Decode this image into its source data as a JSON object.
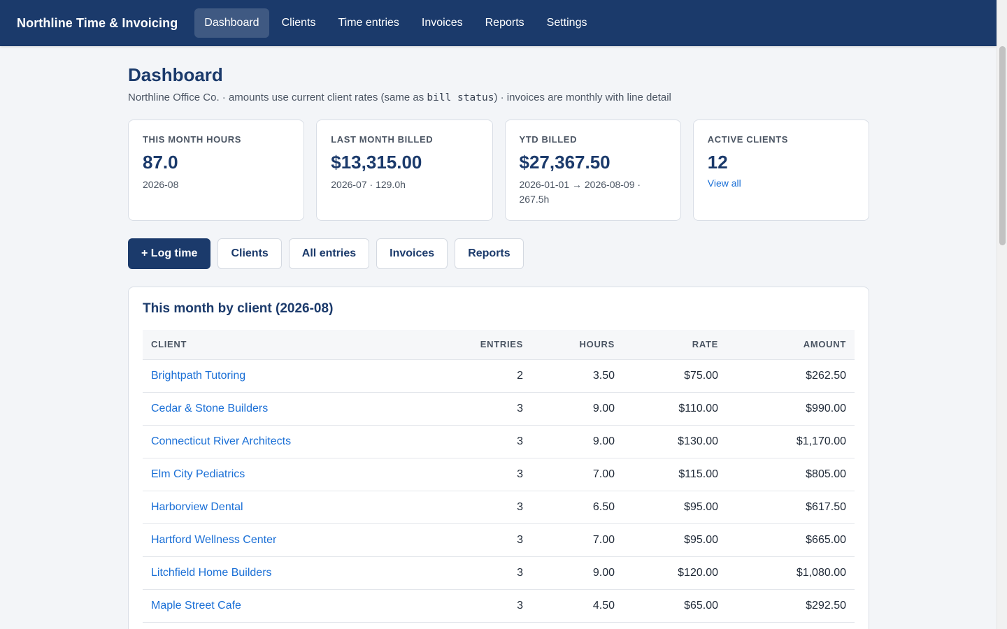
{
  "app": {
    "brand": "Northline Time & Invoicing",
    "nav": [
      {
        "label": "Dashboard",
        "active": true
      },
      {
        "label": "Clients"
      },
      {
        "label": "Time entries"
      },
      {
        "label": "Invoices"
      },
      {
        "label": "Reports"
      },
      {
        "label": "Settings"
      }
    ]
  },
  "page": {
    "title": "Dashboard",
    "subtitle_pre": "Northline Office Co. · amounts use current client rates (same as ",
    "subtitle_code": "bill status",
    "subtitle_post": ") · invoices are monthly with line detail"
  },
  "stats": [
    {
      "label": "This month hours",
      "value": "87.0",
      "sub": "2026-08"
    },
    {
      "label": "Last month billed",
      "value": "$13,315.00",
      "sub": "2026-07 · 129.0h"
    },
    {
      "label": "YTD billed",
      "value": "$27,367.50",
      "sub": "2026-01-01 → 2026-08-09 · 267.5h"
    },
    {
      "label": "Active clients",
      "value": "12",
      "link": "View all"
    }
  ],
  "actions": {
    "log_time": "+ Log time",
    "clients": "Clients",
    "all_entries": "All entries",
    "invoices": "Invoices",
    "reports": "Reports"
  },
  "table": {
    "title": "This month by client (2026-08)",
    "columns": {
      "client": "Client",
      "entries": "Entries",
      "hours": "Hours",
      "rate": "Rate",
      "amount": "Amount"
    },
    "rows": [
      {
        "client": "Brightpath Tutoring",
        "entries": "2",
        "hours": "3.50",
        "rate": "$75.00",
        "amount": "$262.50"
      },
      {
        "client": "Cedar & Stone Builders",
        "entries": "3",
        "hours": "9.00",
        "rate": "$110.00",
        "amount": "$990.00"
      },
      {
        "client": "Connecticut River Architects",
        "entries": "3",
        "hours": "9.00",
        "rate": "$130.00",
        "amount": "$1,170.00"
      },
      {
        "client": "Elm City Pediatrics",
        "entries": "3",
        "hours": "7.00",
        "rate": "$115.00",
        "amount": "$805.00"
      },
      {
        "client": "Harborview Dental",
        "entries": "3",
        "hours": "6.50",
        "rate": "$95.00",
        "amount": "$617.50"
      },
      {
        "client": "Hartford Wellness Center",
        "entries": "3",
        "hours": "7.00",
        "rate": "$95.00",
        "amount": "$665.00"
      },
      {
        "client": "Litchfield Home Builders",
        "entries": "3",
        "hours": "9.00",
        "rate": "$120.00",
        "amount": "$1,080.00"
      },
      {
        "client": "Maple Street Cafe",
        "entries": "3",
        "hours": "4.50",
        "rate": "$65.00",
        "amount": "$292.50"
      }
    ]
  }
}
